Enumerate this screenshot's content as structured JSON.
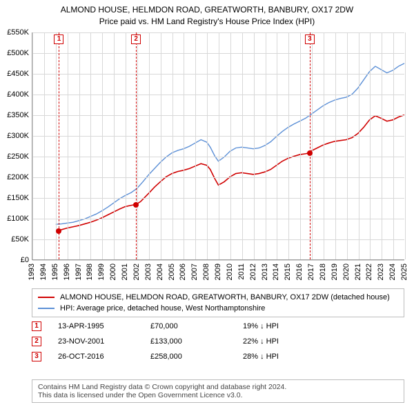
{
  "title_line1": "ALMOND HOUSE, HELMDON ROAD, GREATWORTH, BANBURY, OX17 2DW",
  "title_line2": "Price paid vs. HM Land Registry's House Price Index (HPI)",
  "chart": {
    "type": "line",
    "background_color": "#ffffff",
    "grid_color": "#d8d8d8",
    "axis_color": "#999999",
    "x_years": [
      "1993",
      "1994",
      "1995",
      "1996",
      "1997",
      "1998",
      "1999",
      "2000",
      "2001",
      "2002",
      "2003",
      "2004",
      "2005",
      "2006",
      "2007",
      "2008",
      "2009",
      "2010",
      "2011",
      "2012",
      "2013",
      "2014",
      "2015",
      "2016",
      "2017",
      "2018",
      "2019",
      "2020",
      "2021",
      "2022",
      "2023",
      "2024",
      "2025"
    ],
    "x_min": 1993,
    "x_max": 2025,
    "ylim": [
      0,
      550000
    ],
    "ytick_step": 50000,
    "y_tick_labels": [
      "£0",
      "£50K",
      "£100K",
      "£150K",
      "£200K",
      "£250K",
      "£300K",
      "£350K",
      "£400K",
      "£450K",
      "£500K",
      "£550K"
    ],
    "label_fontsize": 11,
    "series_red": {
      "label": "ALMOND HOUSE, HELMDON ROAD, GREATWORTH, BANBURY, OX17 2DW (detached house)",
      "color": "#d00000",
      "line_width": 1.6,
      "points": [
        [
          1995.28,
          70000
        ],
        [
          1995.5,
          72000
        ],
        [
          1996,
          76000
        ],
        [
          1996.5,
          79000
        ],
        [
          1997,
          82000
        ],
        [
          1997.5,
          86000
        ],
        [
          1998,
          90000
        ],
        [
          1998.5,
          95000
        ],
        [
          1999,
          101000
        ],
        [
          1999.5,
          108000
        ],
        [
          2000,
          115000
        ],
        [
          2000.5,
          122000
        ],
        [
          2001,
          128000
        ],
        [
          2001.5,
          131000
        ],
        [
          2001.9,
          133000
        ],
        [
          2002.3,
          140000
        ],
        [
          2003,
          160000
        ],
        [
          2003.5,
          175000
        ],
        [
          2004,
          188000
        ],
        [
          2004.5,
          200000
        ],
        [
          2005,
          208000
        ],
        [
          2005.5,
          213000
        ],
        [
          2006,
          216000
        ],
        [
          2006.5,
          220000
        ],
        [
          2007,
          226000
        ],
        [
          2007.5,
          232000
        ],
        [
          2008,
          228000
        ],
        [
          2008.3,
          218000
        ],
        [
          2008.7,
          195000
        ],
        [
          2009,
          180000
        ],
        [
          2009.5,
          188000
        ],
        [
          2010,
          200000
        ],
        [
          2010.5,
          208000
        ],
        [
          2011,
          210000
        ],
        [
          2011.5,
          208000
        ],
        [
          2012,
          206000
        ],
        [
          2012.5,
          208000
        ],
        [
          2013,
          212000
        ],
        [
          2013.5,
          218000
        ],
        [
          2014,
          228000
        ],
        [
          2014.5,
          238000
        ],
        [
          2015,
          245000
        ],
        [
          2015.5,
          250000
        ],
        [
          2016,
          254000
        ],
        [
          2016.5,
          256000
        ],
        [
          2016.82,
          258000
        ],
        [
          2017,
          263000
        ],
        [
          2017.5,
          270000
        ],
        [
          2018,
          277000
        ],
        [
          2018.5,
          282000
        ],
        [
          2019,
          286000
        ],
        [
          2019.5,
          288000
        ],
        [
          2020,
          290000
        ],
        [
          2020.5,
          295000
        ],
        [
          2021,
          305000
        ],
        [
          2021.5,
          320000
        ],
        [
          2022,
          338000
        ],
        [
          2022.5,
          348000
        ],
        [
          2023,
          342000
        ],
        [
          2023.5,
          335000
        ],
        [
          2024,
          338000
        ],
        [
          2024.5,
          345000
        ],
        [
          2025,
          350000
        ]
      ]
    },
    "series_blue": {
      "label": "HPI: Average price, detached house, West Northamptonshire",
      "color": "#5b8fd6",
      "line_width": 1.4,
      "points": [
        [
          1995,
          85000
        ],
        [
          1995.5,
          86000
        ],
        [
          1996,
          88000
        ],
        [
          1996.5,
          90000
        ],
        [
          1997,
          94000
        ],
        [
          1997.5,
          98000
        ],
        [
          1998,
          104000
        ],
        [
          1998.5,
          110000
        ],
        [
          1999,
          118000
        ],
        [
          1999.5,
          127000
        ],
        [
          2000,
          137000
        ],
        [
          2000.5,
          147000
        ],
        [
          2001,
          155000
        ],
        [
          2001.5,
          162000
        ],
        [
          2002,
          172000
        ],
        [
          2002.5,
          188000
        ],
        [
          2003,
          205000
        ],
        [
          2003.5,
          220000
        ],
        [
          2004,
          235000
        ],
        [
          2004.5,
          248000
        ],
        [
          2005,
          258000
        ],
        [
          2005.5,
          264000
        ],
        [
          2006,
          268000
        ],
        [
          2006.5,
          274000
        ],
        [
          2007,
          282000
        ],
        [
          2007.5,
          290000
        ],
        [
          2008,
          284000
        ],
        [
          2008.3,
          272000
        ],
        [
          2008.7,
          250000
        ],
        [
          2009,
          238000
        ],
        [
          2009.5,
          248000
        ],
        [
          2010,
          262000
        ],
        [
          2010.5,
          270000
        ],
        [
          2011,
          272000
        ],
        [
          2011.5,
          270000
        ],
        [
          2012,
          268000
        ],
        [
          2012.5,
          270000
        ],
        [
          2013,
          276000
        ],
        [
          2013.5,
          285000
        ],
        [
          2014,
          298000
        ],
        [
          2014.5,
          310000
        ],
        [
          2015,
          320000
        ],
        [
          2015.5,
          328000
        ],
        [
          2016,
          335000
        ],
        [
          2016.5,
          342000
        ],
        [
          2017,
          352000
        ],
        [
          2017.5,
          362000
        ],
        [
          2018,
          372000
        ],
        [
          2018.5,
          380000
        ],
        [
          2019,
          386000
        ],
        [
          2019.5,
          390000
        ],
        [
          2020,
          393000
        ],
        [
          2020.5,
          400000
        ],
        [
          2021,
          415000
        ],
        [
          2021.5,
          435000
        ],
        [
          2022,
          455000
        ],
        [
          2022.5,
          468000
        ],
        [
          2023,
          460000
        ],
        [
          2023.5,
          452000
        ],
        [
          2024,
          458000
        ],
        [
          2024.5,
          468000
        ],
        [
          2025,
          475000
        ]
      ]
    },
    "event_lines": [
      {
        "num": "1",
        "year": 1995.28
      },
      {
        "num": "2",
        "year": 2001.9
      },
      {
        "num": "3",
        "year": 2016.82
      }
    ],
    "sale_dots": [
      {
        "year": 1995.28,
        "value": 70000
      },
      {
        "year": 2001.9,
        "value": 133000
      },
      {
        "year": 2016.82,
        "value": 258000
      }
    ],
    "dot_color": "#d00000"
  },
  "legend": {
    "items": [
      {
        "bind": "chart.series_red.label",
        "color": "#d00000"
      },
      {
        "bind": "chart.series_blue.label",
        "color": "#5b8fd6"
      }
    ]
  },
  "events": [
    {
      "num": "1",
      "date": "13-APR-1995",
      "price": "£70,000",
      "delta": "19% ↓ HPI"
    },
    {
      "num": "2",
      "date": "23-NOV-2001",
      "price": "£133,000",
      "delta": "22% ↓ HPI"
    },
    {
      "num": "3",
      "date": "26-OCT-2016",
      "price": "£258,000",
      "delta": "28% ↓ HPI"
    }
  ],
  "footer_line1": "Contains HM Land Registry data © Crown copyright and database right 2024.",
  "footer_line2": "This data is licensed under the Open Government Licence v3.0."
}
